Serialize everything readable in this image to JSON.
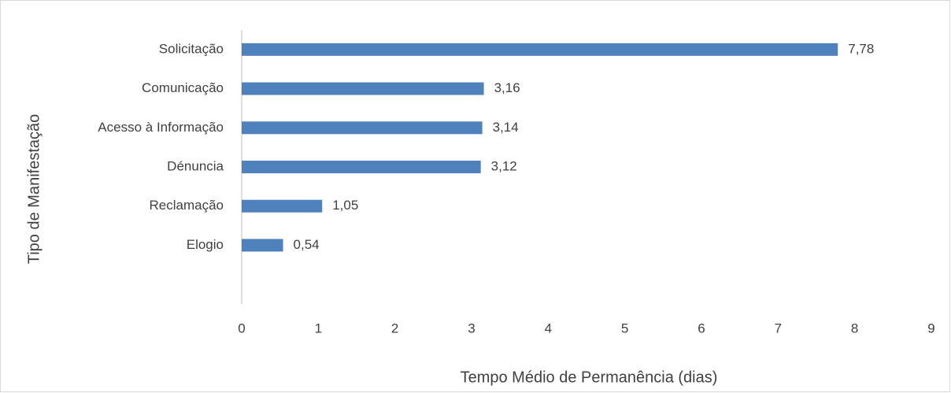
{
  "chart_data": {
    "type": "bar",
    "orientation": "horizontal",
    "categories": [
      "Solicitação",
      "Comunicação",
      "Acesso à Informação",
      "Dénuncia",
      "Reclamação",
      "Elogio"
    ],
    "values": [
      7.78,
      3.16,
      3.14,
      3.12,
      1.05,
      0.54
    ],
    "value_labels": [
      "7,78",
      "3,16",
      "3,14",
      "3,12",
      "1,05",
      "0,54"
    ],
    "color": "#4f81bd",
    "xlabel": "Tempo Médio de Permanência (dias)",
    "ylabel": "Tipo de Manifestação",
    "xlim": [
      0,
      9
    ],
    "xticks": [
      0,
      1,
      2,
      3,
      4,
      5,
      6,
      7,
      8,
      9
    ],
    "grid": false
  }
}
